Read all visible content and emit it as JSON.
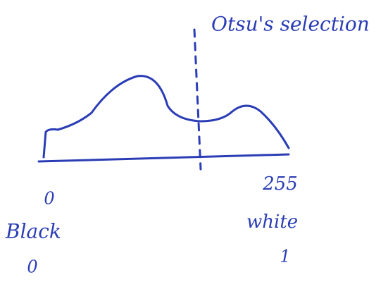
{
  "annotation": "Otsu's selection",
  "axis": {
    "min": "0",
    "max": "255"
  },
  "labels": {
    "left": "Black",
    "right": "white"
  },
  "binary": {
    "left": "0",
    "right": "1"
  }
}
